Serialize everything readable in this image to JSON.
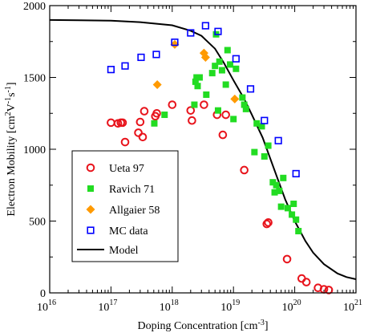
{
  "chart_data": {
    "type": "scatter",
    "xlabel": "Doping Concentration [cm^-3]",
    "ylabel": "Electron Mobility [cm^2V^-1s^-1]",
    "xscale": "log",
    "xlim": [
      1e+16,
      1e+21
    ],
    "ylim": [
      0,
      2000
    ],
    "x_tick_labels": [
      {
        "base": "10",
        "exp": "16",
        "value": 1e+16
      },
      {
        "base": "10",
        "exp": "17",
        "value": 1e+17
      },
      {
        "base": "10",
        "exp": "18",
        "value": 1e+18
      },
      {
        "base": "10",
        "exp": "19",
        "value": 1e+19
      },
      {
        "base": "10",
        "exp": "20",
        "value": 1e+20
      },
      {
        "base": "10",
        "exp": "21",
        "value": 1e+21
      }
    ],
    "y_ticks": [
      0,
      500,
      1000,
      1500,
      2000
    ],
    "y_tick_labels": [
      "0",
      "500",
      "1000",
      "1500",
      "2000"
    ],
    "legend_position": "bottom-left",
    "series": [
      {
        "name": "Ueta 97",
        "marker": "open-circle",
        "color": "#e8141c",
        "points": [
          [
            1e+17,
            1185
          ],
          [
            1.3e+17,
            1180
          ],
          [
            1.45e+17,
            1185
          ],
          [
            1.55e+17,
            1185
          ],
          [
            1.7e+17,
            1050
          ],
          [
            2.8e+17,
            1115
          ],
          [
            3e+17,
            1190
          ],
          [
            3.3e+17,
            1085
          ],
          [
            3.5e+17,
            1265
          ],
          [
            5.3e+17,
            1230
          ],
          [
            5.6e+17,
            1250
          ],
          [
            1e+18,
            1310
          ],
          [
            2e+18,
            1270
          ],
          [
            2.1e+18,
            1200
          ],
          [
            3.3e+18,
            1310
          ],
          [
            5.4e+18,
            1240
          ],
          [
            6.7e+18,
            1100
          ],
          [
            7.5e+18,
            1240
          ],
          [
            1.5e+19,
            855
          ],
          [
            3.5e+19,
            480
          ],
          [
            3.7e+19,
            490
          ],
          [
            7.5e+19,
            235
          ],
          [
            1.3e+20,
            100
          ],
          [
            1.55e+20,
            75
          ],
          [
            2.4e+20,
            35
          ],
          [
            3e+20,
            25
          ],
          [
            3.6e+20,
            20
          ]
        ]
      },
      {
        "name": "Ravich 71",
        "marker": "filled-square",
        "color": "#22dc22",
        "points": [
          [
            5.1e+17,
            1180
          ],
          [
            7.5e+17,
            1240
          ],
          [
            2.3e+18,
            1310
          ],
          [
            2.4e+18,
            1470
          ],
          [
            2.5e+18,
            1500
          ],
          [
            2.6e+18,
            1440
          ],
          [
            2.8e+18,
            1500
          ],
          [
            3.6e+18,
            1380
          ],
          [
            4.5e+18,
            1530
          ],
          [
            5e+18,
            1580
          ],
          [
            5.2e+18,
            1800
          ],
          [
            5.6e+18,
            1270
          ],
          [
            5.9e+18,
            1610
          ],
          [
            6.5e+18,
            1550
          ],
          [
            7.5e+18,
            1450
          ],
          [
            8e+18,
            1690
          ],
          [
            8.8e+18,
            1590
          ],
          [
            1e+19,
            1210
          ],
          [
            1.1e+19,
            1560
          ],
          [
            1.4e+19,
            1360
          ],
          [
            1.5e+19,
            1310
          ],
          [
            1.6e+19,
            1280
          ],
          [
            2.2e+19,
            980
          ],
          [
            2.4e+19,
            1180
          ],
          [
            2.9e+19,
            1160
          ],
          [
            3.2e+19,
            950
          ],
          [
            3.7e+19,
            1025
          ],
          [
            4.4e+19,
            770
          ],
          [
            4.7e+19,
            700
          ],
          [
            5e+19,
            750
          ],
          [
            5.6e+19,
            710
          ],
          [
            6e+19,
            600
          ],
          [
            6.5e+19,
            800
          ],
          [
            7.7e+19,
            590
          ],
          [
            9e+19,
            545
          ],
          [
            9.6e+19,
            620
          ],
          [
            1.05e+20,
            510
          ],
          [
            1.15e+20,
            430
          ]
        ]
      },
      {
        "name": "Allgaier 58",
        "marker": "filled-diamond",
        "color": "#ff9a00",
        "points": [
          [
            5.7e+17,
            1450
          ],
          [
            1.1e+18,
            1730
          ],
          [
            3.3e+18,
            1670
          ],
          [
            3.5e+18,
            1640
          ],
          [
            1.05e+19,
            1350
          ]
        ]
      },
      {
        "name": "MC data",
        "marker": "open-square",
        "color": "#0000ff",
        "points": [
          [
            1e+17,
            1555
          ],
          [
            1.7e+17,
            1580
          ],
          [
            3.1e+17,
            1640
          ],
          [
            5.5e+17,
            1660
          ],
          [
            1.1e+18,
            1745
          ],
          [
            2e+18,
            1810
          ],
          [
            3.5e+18,
            1860
          ],
          [
            5.6e+18,
            1820
          ],
          [
            1.1e+19,
            1630
          ],
          [
            1.9e+19,
            1420
          ],
          [
            3.2e+19,
            1200
          ],
          [
            5.4e+19,
            1060
          ],
          [
            1.05e+20,
            830
          ]
        ]
      },
      {
        "name": "Model",
        "marker": "line",
        "color": "#000000",
        "points": [
          [
            1e+16,
            1900
          ],
          [
            3e+16,
            1898
          ],
          [
            1e+17,
            1895
          ],
          [
            3e+17,
            1885
          ],
          [
            1e+18,
            1863
          ],
          [
            2e+18,
            1825
          ],
          [
            3e+18,
            1790
          ],
          [
            5e+18,
            1700
          ],
          [
            7e+18,
            1600
          ],
          [
            1e+19,
            1480
          ],
          [
            1.5e+19,
            1350
          ],
          [
            2e+19,
            1240
          ],
          [
            3e+19,
            1080
          ],
          [
            5e+19,
            820
          ],
          [
            7e+19,
            650
          ],
          [
            1e+20,
            500
          ],
          [
            1.5e+20,
            360
          ],
          [
            2e+20,
            280
          ],
          [
            3e+20,
            200
          ],
          [
            5e+20,
            135
          ],
          [
            7e+20,
            110
          ],
          [
            1e+21,
            95
          ]
        ]
      }
    ]
  }
}
